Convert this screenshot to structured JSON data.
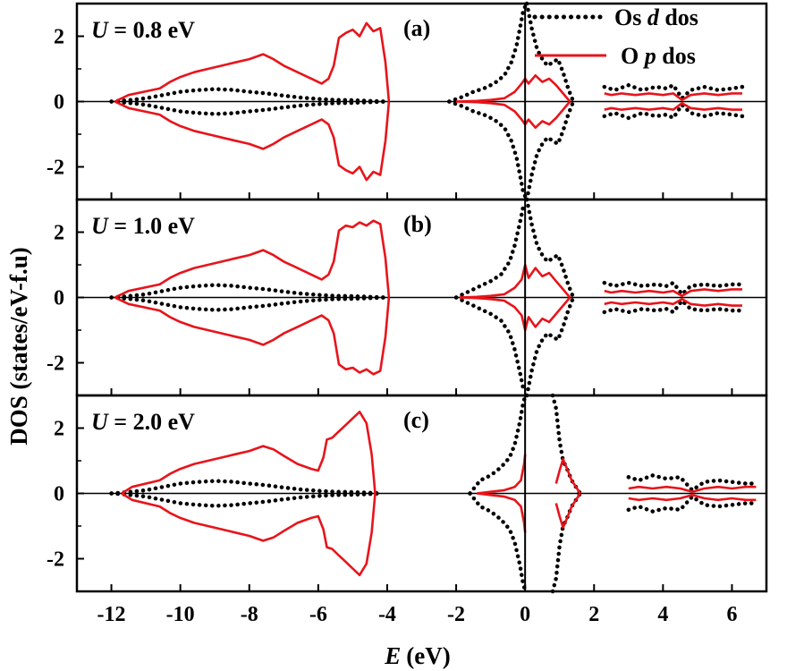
{
  "chart_data": {
    "type": "line",
    "xlabel_symbol": "E",
    "xlabel_unit": "(eV)",
    "ylabel": "DOS (states/eV-f.u)",
    "xlim": [
      -13,
      7
    ],
    "xticks": [
      -12,
      -10,
      -8,
      -6,
      -4,
      -2,
      0,
      2,
      4,
      6
    ],
    "xtick_labels": [
      "-12",
      "-10",
      "-8",
      "-6",
      "-4",
      "-2",
      "0",
      "2",
      "4",
      "6"
    ],
    "ylim": [
      -3,
      3
    ],
    "yticks": [
      -2,
      0,
      2
    ],
    "ytick_labels": [
      "-2",
      "0",
      "2"
    ],
    "legend": [
      {
        "prefix": "Os ",
        "symbol": "d",
        "suffix": " dos",
        "style": "dotted",
        "color": "#000000"
      },
      {
        "prefix": "O ",
        "symbol": "p",
        "suffix": " dos",
        "style": "solid",
        "color": "#e8141b"
      }
    ],
    "series_colors": {
      "os_d": "#000000",
      "o_p": "#e8141b"
    },
    "panels": [
      {
        "tag": "(a)",
        "u_symbol": "U",
        "u_value": " = 0.8 eV",
        "o_p": {
          "bands": [
            {
              "x": [
                -11.9,
                -11.5,
                -10.6,
                -10.3,
                -10.0,
                -9.6,
                -9.2,
                -8.8,
                -8.4,
                -8.0,
                -7.6,
                -7.3,
                -7.0,
                -6.6,
                -6.2,
                -5.9,
                -5.7,
                -5.55,
                -5.4,
                -5.2,
                -5.0,
                -4.8,
                -4.6,
                -4.4,
                -4.2,
                -4.05,
                -3.95
              ],
              "y": [
                0,
                0.2,
                0.4,
                0.6,
                0.75,
                0.9,
                1.0,
                1.1,
                1.2,
                1.3,
                1.45,
                1.3,
                1.1,
                0.9,
                0.7,
                0.55,
                0.7,
                1.1,
                1.95,
                2.1,
                2.2,
                2.0,
                2.4,
                2.15,
                2.25,
                1.2,
                0
              ]
            },
            {
              "x": [
                -2.0,
                -1.4,
                -1.0,
                -0.6,
                -0.3,
                -0.1,
                0.0,
                0.1,
                0.3,
                0.5,
                0.7,
                0.9,
                1.1,
                1.3
              ],
              "y": [
                0,
                0.02,
                0.05,
                0.1,
                0.3,
                0.55,
                0.7,
                0.55,
                0.8,
                0.6,
                0.7,
                0.5,
                0.25,
                0
              ]
            },
            {
              "x": [
                2.3,
                2.5,
                2.8,
                3.2,
                3.6,
                4.0,
                4.3,
                4.55,
                4.8,
                5.2,
                5.6,
                6.0,
                6.3
              ],
              "y": [
                0.25,
                0.2,
                0.25,
                0.2,
                0.25,
                0.2,
                0.25,
                0.05,
                0.2,
                0.25,
                0.2,
                0.25,
                0.25
              ]
            }
          ]
        },
        "os_d": {
          "bands": [
            {
              "x": [
                -12.0,
                -11.5,
                -11.0,
                -10.5,
                -10.0,
                -9.5,
                -9.0,
                -8.5,
                -8.0,
                -7.5,
                -7.0,
                -6.5,
                -6.0,
                -5.5,
                -5.0,
                -4.5,
                -4.0
              ],
              "y": [
                0,
                0.04,
                0.1,
                0.2,
                0.3,
                0.35,
                0.38,
                0.36,
                0.3,
                0.25,
                0.18,
                0.12,
                0.08,
                0.05,
                0.04,
                0.02,
                0
              ]
            },
            {
              "x": [
                -2.2,
                -1.8,
                -1.5,
                -1.2,
                -0.9,
                -0.6,
                -0.4,
                -0.25,
                -0.12,
                -0.05,
                0.0
              ],
              "y": [
                0,
                0.15,
                0.3,
                0.4,
                0.55,
                0.8,
                1.2,
                1.7,
                2.4,
                2.8,
                2.9
              ]
            },
            {
              "x": [
                0.05,
                0.2,
                0.35,
                0.5,
                0.65,
                0.8,
                0.95,
                1.1,
                1.25,
                1.4
              ],
              "y": [
                -3.0,
                -2.2,
                -1.6,
                -1.3,
                -1.1,
                -1.2,
                -1.3,
                -0.9,
                -0.4,
                0
              ]
            },
            {
              "x": [
                2.3,
                2.6,
                3.0,
                3.4,
                3.8,
                4.1,
                4.3,
                4.55,
                4.8,
                5.2,
                5.6,
                6.0,
                6.3
              ],
              "y": [
                0.45,
                0.35,
                0.5,
                0.35,
                0.45,
                0.4,
                0.5,
                0.1,
                0.35,
                0.45,
                0.35,
                0.4,
                0.45
              ]
            }
          ]
        }
      },
      {
        "tag": "(b)",
        "u_symbol": "U",
        "u_value": " = 1.0 eV",
        "o_p": {
          "bands": [
            {
              "x": [
                -11.9,
                -11.5,
                -10.6,
                -10.3,
                -10.0,
                -9.6,
                -9.2,
                -8.8,
                -8.4,
                -8.0,
                -7.6,
                -7.3,
                -7.0,
                -6.6,
                -6.2,
                -5.9,
                -5.7,
                -5.55,
                -5.4,
                -5.2,
                -5.0,
                -4.8,
                -4.6,
                -4.4,
                -4.2,
                -4.05,
                -3.95
              ],
              "y": [
                0,
                0.2,
                0.4,
                0.6,
                0.75,
                0.9,
                1.0,
                1.1,
                1.2,
                1.3,
                1.45,
                1.3,
                1.1,
                0.9,
                0.7,
                0.55,
                0.7,
                1.1,
                2.05,
                2.2,
                2.15,
                2.3,
                2.2,
                2.35,
                2.25,
                1.2,
                0
              ]
            },
            {
              "x": [
                -1.9,
                -1.4,
                -1.0,
                -0.6,
                -0.3,
                -0.1,
                0.0,
                0.1,
                0.3,
                0.5,
                0.7,
                0.9,
                1.1,
                1.3
              ],
              "y": [
                0,
                0.02,
                0.05,
                0.1,
                0.3,
                0.55,
                1.0,
                0.6,
                0.9,
                0.65,
                0.75,
                0.5,
                0.25,
                0
              ]
            },
            {
              "x": [
                2.3,
                2.5,
                2.8,
                3.2,
                3.6,
                4.0,
                4.3,
                4.55,
                4.8,
                5.2,
                5.6,
                6.0,
                6.3
              ],
              "y": [
                0.2,
                0.15,
                0.2,
                0.15,
                0.2,
                0.15,
                0.2,
                0.05,
                0.2,
                0.25,
                0.2,
                0.25,
                0.25
              ]
            }
          ]
        },
        "os_d": {
          "bands": [
            {
              "x": [
                -12.0,
                -11.5,
                -11.0,
                -10.5,
                -10.0,
                -9.5,
                -9.0,
                -8.5,
                -8.0,
                -7.5,
                -7.0,
                -6.5,
                -6.0,
                -5.5,
                -5.0,
                -4.5,
                -4.0
              ],
              "y": [
                0,
                0.04,
                0.1,
                0.2,
                0.3,
                0.35,
                0.38,
                0.36,
                0.3,
                0.25,
                0.18,
                0.12,
                0.08,
                0.05,
                0.04,
                0.02,
                0
              ]
            },
            {
              "x": [
                -2.0,
                -1.6,
                -1.3,
                -1.0,
                -0.7,
                -0.45,
                -0.3,
                -0.15,
                -0.05,
                0.0
              ],
              "y": [
                0,
                0.2,
                0.35,
                0.5,
                0.7,
                1.1,
                1.6,
                2.3,
                2.8,
                2.9
              ]
            },
            {
              "x": [
                0.05,
                0.2,
                0.35,
                0.5,
                0.65,
                0.8,
                0.95,
                1.1,
                1.25,
                1.4
              ],
              "y": [
                -3.0,
                -2.2,
                -1.6,
                -1.3,
                -1.1,
                -1.2,
                -1.3,
                -0.9,
                -0.4,
                0
              ]
            },
            {
              "x": [
                2.3,
                2.6,
                3.0,
                3.4,
                3.8,
                4.1,
                4.3,
                4.55,
                4.8,
                5.2,
                5.6,
                6.0,
                6.3
              ],
              "y": [
                0.45,
                0.35,
                0.45,
                0.35,
                0.4,
                0.35,
                0.45,
                0.1,
                0.35,
                0.4,
                0.35,
                0.4,
                0.4
              ]
            }
          ]
        }
      },
      {
        "tag": "(c)",
        "u_symbol": "U",
        "u_value": " = 2.0 eV",
        "o_p": {
          "bands": [
            {
              "x": [
                -11.7,
                -11.4,
                -10.6,
                -10.3,
                -10.0,
                -9.6,
                -9.2,
                -8.8,
                -8.4,
                -8.0,
                -7.6,
                -7.3,
                -7.0,
                -6.6,
                -6.2,
                -6.0,
                -5.85,
                -5.75,
                -5.6,
                -5.4,
                -5.2,
                -5.0,
                -4.8,
                -4.6,
                -4.45,
                -4.35
              ],
              "y": [
                0,
                0.2,
                0.4,
                0.6,
                0.75,
                0.9,
                1.0,
                1.1,
                1.2,
                1.3,
                1.45,
                1.35,
                1.15,
                0.9,
                0.75,
                0.7,
                1.1,
                1.65,
                1.7,
                1.9,
                2.1,
                2.3,
                2.5,
                2.15,
                1.2,
                0
              ]
            },
            {
              "x": [
                -1.4,
                -1.0,
                -0.6,
                -0.3,
                -0.12,
                -0.03,
                0.0
              ],
              "y": [
                0,
                0.05,
                0.1,
                0.2,
                0.4,
                0.9,
                1.2
              ]
            },
            {
              "x": [
                0.9,
                1.0,
                1.1,
                1.2,
                1.35,
                1.6
              ],
              "y": [
                0.3,
                0.7,
                1.05,
                0.8,
                0.4,
                0
              ]
            },
            {
              "x": [
                3.0,
                3.3,
                3.7,
                4.1,
                4.5,
                4.85,
                5.2,
                5.6,
                6.0,
                6.4,
                6.7
              ],
              "y": [
                0.15,
                0.2,
                0.15,
                0.2,
                0.15,
                0.05,
                0.15,
                0.2,
                0.15,
                0.2,
                0.2
              ]
            }
          ]
        },
        "os_d": {
          "bands": [
            {
              "x": [
                -12.0,
                -11.5,
                -11.0,
                -10.5,
                -10.0,
                -9.5,
                -9.0,
                -8.5,
                -8.0,
                -7.5,
                -7.0,
                -6.5,
                -6.0,
                -5.5,
                -5.0,
                -4.5,
                -4.2
              ],
              "y": [
                0,
                0.04,
                0.1,
                0.2,
                0.3,
                0.35,
                0.38,
                0.36,
                0.3,
                0.25,
                0.18,
                0.12,
                0.08,
                0.05,
                0.04,
                0.02,
                0
              ]
            },
            {
              "x": [
                -1.6,
                -1.3,
                -1.0,
                -0.7,
                -0.45,
                -0.3,
                -0.15,
                -0.05,
                0.0
              ],
              "y": [
                0,
                0.4,
                0.55,
                0.8,
                1.1,
                1.5,
                2.2,
                2.8,
                2.95
              ]
            },
            {
              "x": [
                0.8,
                0.9,
                1.0,
                1.1,
                1.2,
                1.35,
                1.6
              ],
              "y": [
                -3.0,
                -2.6,
                -1.6,
                -1.0,
                -0.8,
                -0.4,
                0
              ]
            },
            {
              "x": [
                3.0,
                3.3,
                3.7,
                4.1,
                4.5,
                4.85,
                5.2,
                5.6,
                6.0,
                6.4,
                6.7
              ],
              "y": [
                0.5,
                0.4,
                0.55,
                0.45,
                0.5,
                0.1,
                0.35,
                0.4,
                0.35,
                0.3,
                0.3
              ]
            }
          ]
        }
      }
    ]
  }
}
